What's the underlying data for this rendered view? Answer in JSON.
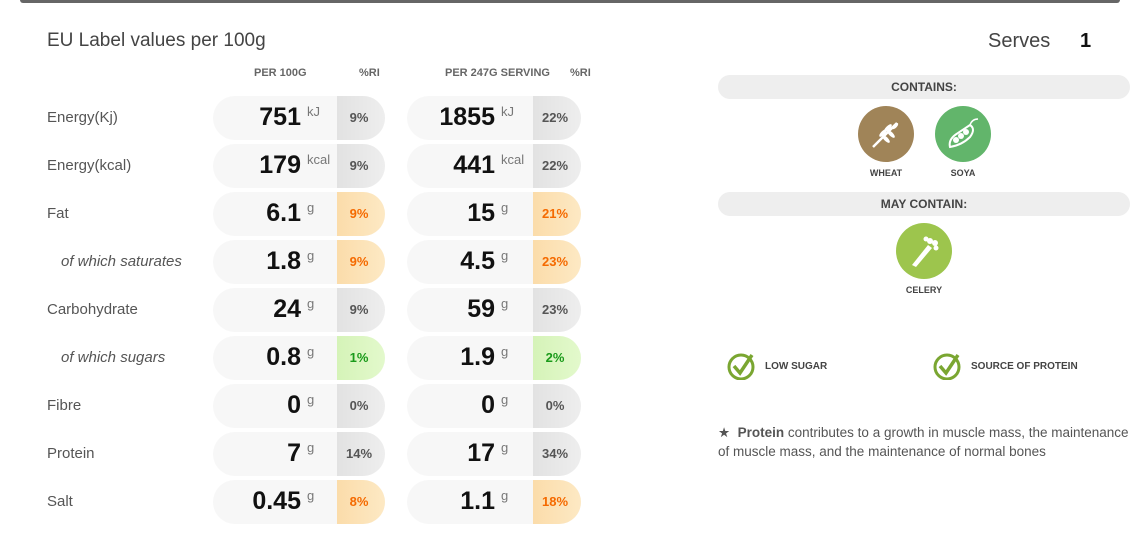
{
  "title": "EU Label values per 100g",
  "serves": {
    "label": "Serves",
    "value": "1"
  },
  "columns": {
    "per100": "PER 100G",
    "ri1": "%RI",
    "perServing": "PER 247G SERVING",
    "ri2": "%RI"
  },
  "rows": [
    {
      "label": "Energy(Kj)",
      "sub": false,
      "v1": "751",
      "u1": "kJ",
      "r1": "9%",
      "c1": "grey",
      "v2": "1855",
      "u2": "kJ",
      "r2": "22%",
      "c2": "grey"
    },
    {
      "label": "Energy(kcal)",
      "sub": false,
      "v1": "179",
      "u1": "kcal",
      "r1": "9%",
      "c1": "grey",
      "v2": "441",
      "u2": "kcal",
      "r2": "22%",
      "c2": "grey"
    },
    {
      "label": "Fat",
      "sub": false,
      "v1": "6.1",
      "u1": "g",
      "r1": "9%",
      "c1": "orange",
      "v2": "15",
      "u2": "g",
      "r2": "21%",
      "c2": "orange"
    },
    {
      "label": "of which saturates",
      "sub": true,
      "v1": "1.8",
      "u1": "g",
      "r1": "9%",
      "c1": "orange",
      "v2": "4.5",
      "u2": "g",
      "r2": "23%",
      "c2": "orange"
    },
    {
      "label": "Carbohydrate",
      "sub": false,
      "v1": "24",
      "u1": "g",
      "r1": "9%",
      "c1": "grey",
      "v2": "59",
      "u2": "g",
      "r2": "23%",
      "c2": "grey"
    },
    {
      "label": "of which sugars",
      "sub": true,
      "v1": "0.8",
      "u1": "g",
      "r1": "1%",
      "c1": "green",
      "v2": "1.9",
      "u2": "g",
      "r2": "2%",
      "c2": "green"
    },
    {
      "label": "Fibre",
      "sub": false,
      "v1": "0",
      "u1": "g",
      "r1": "0%",
      "c1": "grey",
      "v2": "0",
      "u2": "g",
      "r2": "0%",
      "c2": "grey"
    },
    {
      "label": "Protein",
      "sub": false,
      "v1": "7",
      "u1": "g",
      "r1": "14%",
      "c1": "grey",
      "v2": "17",
      "u2": "g",
      "r2": "34%",
      "c2": "grey"
    },
    {
      "label": "Salt",
      "sub": false,
      "v1": "0.45",
      "u1": "g",
      "r1": "8%",
      "c1": "orange",
      "v2": "1.1",
      "u2": "g",
      "r2": "18%",
      "c2": "orange"
    }
  ],
  "contains": {
    "header": "CONTAINS:",
    "items": [
      {
        "name": "WHEAT",
        "icon": "wheat-icon",
        "color": "#a08458"
      },
      {
        "name": "SOYA",
        "icon": "soya-icon",
        "color": "#62b56b"
      }
    ]
  },
  "mayContain": {
    "header": "MAY CONTAIN:",
    "items": [
      {
        "name": "CELERY",
        "icon": "celery-icon",
        "color": "#9dc54d"
      }
    ]
  },
  "claims": [
    "LOW SUGAR",
    "SOURCE OF PROTEIN"
  ],
  "note": {
    "star": "★",
    "bold": "Protein",
    "text": " contributes to a growth in muscle mass, the maintenance of muscle mass, and the maintenance of normal bones"
  }
}
